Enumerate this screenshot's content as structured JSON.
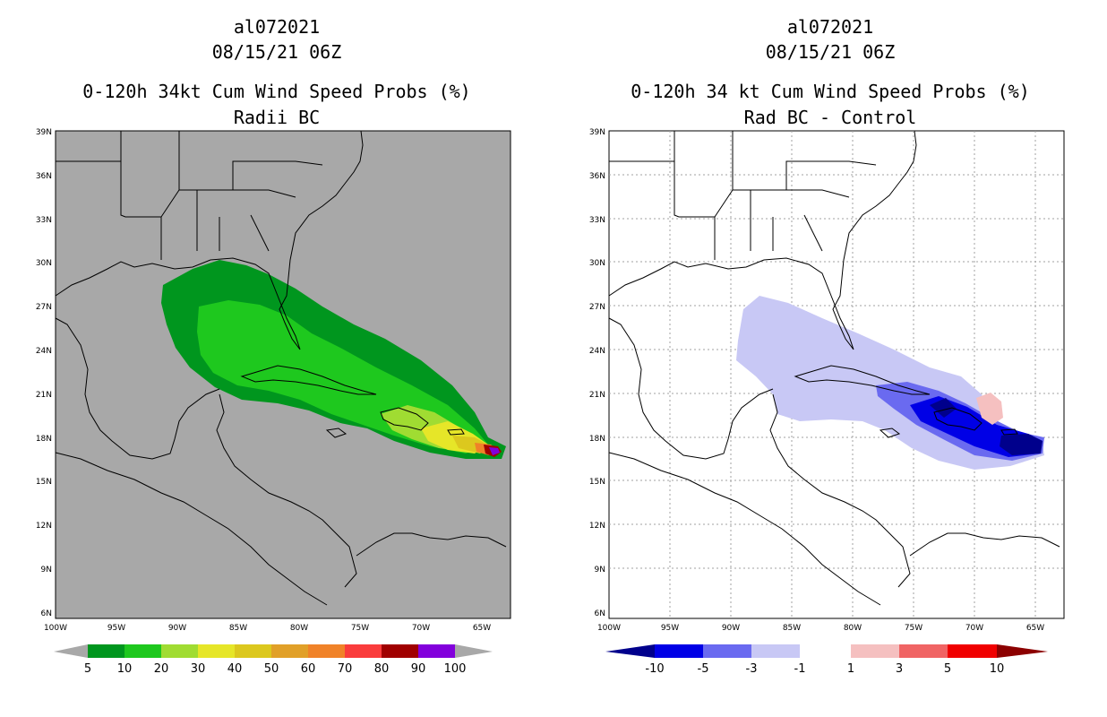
{
  "left": {
    "title_line1": "al072021",
    "title_line2": "08/15/21 06Z",
    "title_line3": "0-120h 34kt Cum Wind Speed Probs (%)",
    "title_line4": "Radii BC",
    "colors": {
      "background": "#a8a8a8",
      "land_outline": "#000000"
    },
    "colorbar": {
      "colors": [
        "#00961e",
        "#1ec81e",
        "#a0dc32",
        "#e6e628",
        "#dcc81e",
        "#e1a028",
        "#f08228",
        "#fa3c3c",
        "#a00000",
        "#8200dc"
      ],
      "end_color": "#a8a8a8",
      "labels": [
        "5",
        "10",
        "20",
        "30",
        "40",
        "50",
        "60",
        "70",
        "80",
        "90",
        "100"
      ]
    }
  },
  "right": {
    "title_line1": "al072021",
    "title_line2": "08/15/21 06Z",
    "title_line3": "0-120h 34 kt Cum Wind Speed Probs (%)",
    "title_line4": "Rad BC - Control",
    "colors": {
      "background": "#ffffff",
      "land_outline": "#000000",
      "grid": "#a0a0a0"
    },
    "colorbar": {
      "colors": [
        "#0000e6",
        "#6a6af0",
        "#c8c8f5",
        "#ffffff",
        "#f5c0c0",
        "#f06464",
        "#f00000"
      ],
      "low_end_color": "#00008c",
      "high_end_color": "#8c0000",
      "labels": [
        "-10",
        "-5",
        "-3",
        "-1",
        "1",
        "3",
        "5",
        "10"
      ]
    }
  },
  "axes": {
    "lat_labels": [
      "39N",
      "36N",
      "33N",
      "30N",
      "27N",
      "24N",
      "21N",
      "18N",
      "15N",
      "12N",
      "9N",
      "6N"
    ],
    "lon_labels": [
      "100W",
      "95W",
      "90W",
      "85W",
      "80W",
      "75W",
      "70W",
      "65W"
    ]
  }
}
